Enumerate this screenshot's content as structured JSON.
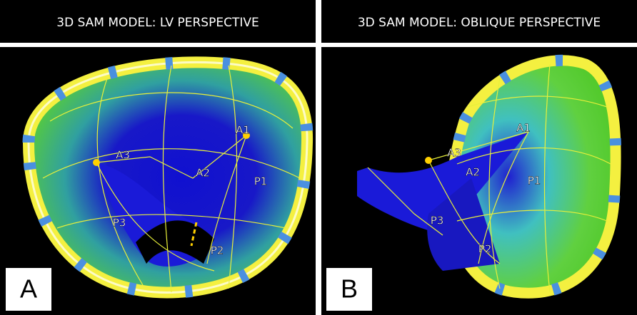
{
  "panels": [
    {
      "title": "3D SAM MODEL: LV PERSPECTIVE",
      "letter": "A",
      "labels": [
        "A1",
        "A3",
        "A2",
        "P1",
        "P3",
        "P2"
      ]
    },
    {
      "title": "3D SAM MODEL: OBLIQUE PERSPECTIVE",
      "letter": "B",
      "labels": [
        "A1",
        "A3",
        "A2",
        "P1",
        "P3",
        "P2"
      ]
    }
  ]
}
